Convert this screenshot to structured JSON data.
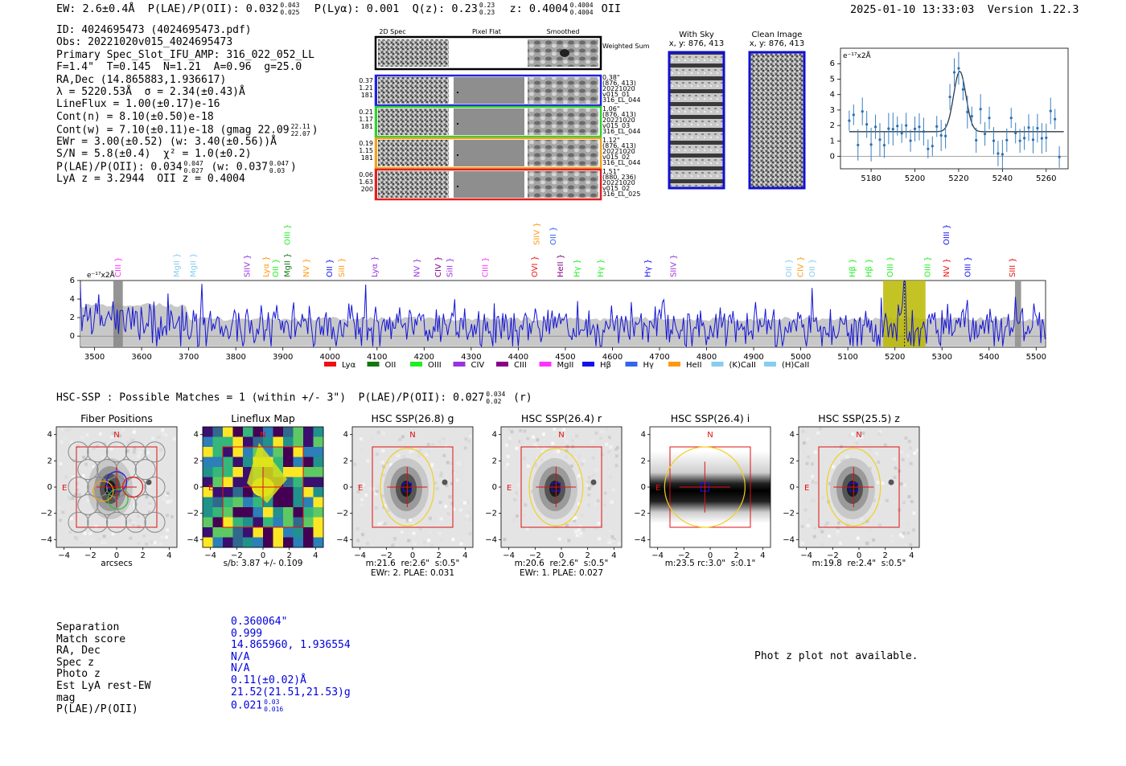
{
  "header": {
    "left": "EW: 2.6±0.4Å  P(LAE)/P(OII): 0.032",
    "left_sup": "0.043",
    "left_sub": "0.025",
    "plya": "P(Lyα): 0.001",
    "qz": "Q(z): 0.23",
    "qz_sup": "0.23",
    "qz_sub": "0.23",
    "z": "z: 0.4004",
    "z_sup": "0.4004",
    "z_sub": "0.4004",
    "z_line": "OII",
    "datetime": "2025-01-10 13:33:03",
    "version": "Version 1.22.3"
  },
  "info": {
    "id": "ID: 4024695473 (4024695473.pdf)",
    "obs": "Obs: 20221020v015_4024695473",
    "primary": "Primary Spec_Slot_IFU_AMP: 316_022_052_LL",
    "params": "F=1.4\"  T=0.145  N=1.21  A=0.96  g=25.0",
    "radec": "RA,Dec (14.865883,1.936617)",
    "lambda": "λ = 5220.53Å  σ = 2.34(±0.43)Å",
    "lineflux": "LineFlux = 1.00(±0.17)e-16",
    "contn": "Cont(n) = 8.10(±0.50)e-18",
    "contw": "Cont(w) = 7.10(±0.11)e-18 (gmag 22.09",
    "contw_sup": "22.11",
    "contw_sub": "22.07",
    "ewr": "EWr = 3.00(±0.52) (w: 3.40(±0.56))Å",
    "sn": "S/N = 5.8(±0.4)  χ² = 1.0(±0.2)",
    "plae": "P(LAE)/P(OII): 0.034",
    "plae_sup": "0.047",
    "plae_sub": "0.027",
    "plae_w": "(w: 0.037",
    "plae_w_sup": "0.047",
    "plae_w_sub": "0.03",
    "lyaz": "LyA z = 3.2944  OII z = 0.4004"
  },
  "spec2d": {
    "col_headers": [
      "2D Spec",
      "Pixel Flat",
      "Smoothed"
    ],
    "weighted_sum": "Weighted Sum",
    "rows": [
      {
        "left": [
          "0.37",
          "1.21",
          "181"
        ],
        "right": [
          "0.38\"",
          "(876, 413)",
          "20221020",
          "v015_01",
          "316_LL_044"
        ],
        "color": "#2020e0"
      },
      {
        "left": [
          "0.21",
          "1.17",
          "181"
        ],
        "right": [
          "1.06\"",
          "(876, 413)",
          "20221020",
          "v015_03",
          "316_LL_044"
        ],
        "color": "#30d030"
      },
      {
        "left": [
          "0.19",
          "1.15",
          "181"
        ],
        "right": [
          "1.12\"",
          "(876, 413)",
          "20221020",
          "v015_02",
          "316_LL_044"
        ],
        "color": "#f0a020"
      },
      {
        "left": [
          "0.06",
          "1.63",
          "200"
        ],
        "right": [
          "1.51\"",
          "(880, 236)",
          "20221020",
          "v015_02",
          "316_LL_025"
        ],
        "color": "#e02020"
      }
    ]
  },
  "cutouts": {
    "with_sky": "With Sky",
    "with_sky_xy": "x, y: 876, 413",
    "clean": "Clean Image",
    "clean_xy": "x, y: 876, 413"
  },
  "zoom_chart": {
    "unit": "e⁻¹⁷x2Å",
    "type": "line",
    "xlim": [
      5166,
      5270
    ],
    "ylim": [
      -0.8,
      7.0
    ],
    "xticks": [
      "5180",
      "5200",
      "5220",
      "5240",
      "5260"
    ],
    "yticks": [
      "0",
      "1",
      "2",
      "3",
      "4",
      "5",
      "6"
    ]
  },
  "spectrum": {
    "unit": "e⁻¹⁷x2Å",
    "xticks": [
      "3500",
      "3600",
      "3700",
      "3800",
      "3900",
      "4000",
      "4100",
      "4200",
      "4300",
      "4400",
      "4500",
      "4600",
      "4700",
      "4800",
      "4900",
      "5000",
      "5100",
      "5200",
      "5300",
      "5400",
      "5500"
    ],
    "yticks": [
      "0",
      "2",
      "4",
      "6"
    ],
    "legend": [
      {
        "label": "Lyα",
        "color": "#ee1111"
      },
      {
        "label": "OII",
        "color": "#117711"
      },
      {
        "label": "OIII",
        "color": "#22ee22"
      },
      {
        "label": "CIV",
        "color": "#9933dd"
      },
      {
        "label": "CIII",
        "color": "#880088"
      },
      {
        "label": "MgII",
        "color": "#ff33ff"
      },
      {
        "label": "Hβ",
        "color": "#1111ee"
      },
      {
        "label": "Hγ",
        "color": "#3366ee"
      },
      {
        "label": "HeII",
        "color": "#ff9911"
      },
      {
        "label": "(K)CaII",
        "color": "#88ccee"
      },
      {
        "label": "(H)CaII",
        "color": "#88ccee"
      }
    ],
    "lines": [
      {
        "label": "CIII",
        "wl": 3555,
        "color": "#ff33ff",
        "row": 0
      },
      {
        "label": "MgII",
        "wl": 3680,
        "color": "#88ccee",
        "row": 0
      },
      {
        "label": "MgII",
        "wl": 3715,
        "color": "#88ccee",
        "row": 0
      },
      {
        "label": "SIIV",
        "wl": 3830,
        "color": "#9933dd",
        "row": 0
      },
      {
        "label": "Lyα",
        "wl": 3870,
        "color": "#ff9911",
        "row": 0
      },
      {
        "label": "OII",
        "wl": 3890,
        "color": "#22ee22",
        "row": 0
      },
      {
        "label": "MgII",
        "wl": 3915,
        "color": "#117711",
        "row": 0
      },
      {
        "label": "OIII",
        "wl": 3915,
        "color": "#22ee22",
        "row": 1
      },
      {
        "label": "NV",
        "wl": 3955,
        "color": "#ff9911",
        "row": 0
      },
      {
        "label": "OII",
        "wl": 4005,
        "color": "#1111ee",
        "row": 0
      },
      {
        "label": "SiII",
        "wl": 4030,
        "color": "#ff9911",
        "row": 0
      },
      {
        "label": "Lyα",
        "wl": 4100,
        "color": "#9933dd",
        "row": 0
      },
      {
        "label": "NV",
        "wl": 4190,
        "color": "#9933dd",
        "row": 0
      },
      {
        "label": "CIV",
        "wl": 4235,
        "color": "#880088",
        "row": 0
      },
      {
        "label": "SiII",
        "wl": 4260,
        "color": "#9933dd",
        "row": 0
      },
      {
        "label": "CIII",
        "wl": 4335,
        "color": "#ff33ff",
        "row": 0
      },
      {
        "label": "OVI",
        "wl": 4440,
        "color": "#ee1111",
        "row": 0
      },
      {
        "label": "SIIV",
        "wl": 4445,
        "color": "#ff9911",
        "row": 1
      },
      {
        "label": "OII",
        "wl": 4480,
        "color": "#3366ee",
        "row": 1
      },
      {
        "label": "HeII",
        "wl": 4495,
        "color": "#880088",
        "row": 0
      },
      {
        "label": "Hγ",
        "wl": 4530,
        "color": "#22ee22",
        "row": 0
      },
      {
        "label": "Hγ",
        "wl": 4580,
        "color": "#22ee22",
        "row": 0
      },
      {
        "label": "Hγ",
        "wl": 4680,
        "color": "#1111ee",
        "row": 0
      },
      {
        "label": "SIIV",
        "wl": 4735,
        "color": "#9933dd",
        "row": 0
      },
      {
        "label": "OII",
        "wl": 4980,
        "color": "#88ccee",
        "row": 0
      },
      {
        "label": "CIV",
        "wl": 5005,
        "color": "#ff9911",
        "row": 0
      },
      {
        "label": "OII",
        "wl": 5030,
        "color": "#88ccee",
        "row": 0
      },
      {
        "label": "Hβ",
        "wl": 5115,
        "color": "#22ee22",
        "row": 0
      },
      {
        "label": "Hβ",
        "wl": 5150,
        "color": "#22ee22",
        "row": 0
      },
      {
        "label": "OIII",
        "wl": 5195,
        "color": "#22ee22",
        "row": 0
      },
      {
        "label": "OIII",
        "wl": 5275,
        "color": "#22ee22",
        "row": 0
      },
      {
        "label": "NV",
        "wl": 5315,
        "color": "#ee1111",
        "row": 0
      },
      {
        "label": "OIII",
        "wl": 5360,
        "color": "#1111ee",
        "row": 0
      },
      {
        "label": "OIII",
        "wl": 5315,
        "color": "#1111ee",
        "row": 1
      },
      {
        "label": "SIII",
        "wl": 5455,
        "color": "#ee1111",
        "row": 0
      }
    ]
  },
  "hsc": {
    "heading": "HSC-SSP : Possible Matches = 1 (within +/- 3\")  P(LAE)/P(OII): 0.027",
    "heading_sup": "0.034",
    "heading_sub": "0.02",
    "heading_band": "(r)",
    "panels": [
      {
        "title": "Fiber Positions",
        "cap1": "arcsecs",
        "cap2": ""
      },
      {
        "title": "Lineflux Map",
        "cap1": "s/b: 3.87 +/- 0.109",
        "cap2": ""
      },
      {
        "title": "HSC SSP(26.8) g",
        "cap1": "m:21.6  re:2.6\"  s:0.5\"",
        "cap2": "EWr: 2. PLAE: 0.031"
      },
      {
        "title": "HSC SSP(26.4) r",
        "cap1": "m:20.6  re:2.6\"  s:0.5\"",
        "cap2": "EWr: 1. PLAE: 0.027"
      },
      {
        "title": "HSC SSP(26.4) i",
        "cap1": "m:23.5 rc:3.0\"  s:0.1\"",
        "cap2": ""
      },
      {
        "title": "HSC SSP(25.5) z",
        "cap1": "m:19.8  re:2.4\"  s:0.5\"",
        "cap2": ""
      }
    ],
    "ticks": [
      "−4",
      "−2",
      "0",
      "2",
      "4"
    ],
    "n_label": "N",
    "e_label": "E"
  },
  "match": {
    "labels": [
      "Separation",
      "Match score",
      "RA, Dec",
      "Spec z",
      "Photo z",
      "Est LyA rest-EW",
      "mag",
      "P(LAE)/P(OII)"
    ],
    "separation": "0.360064\"",
    "match_score": "0.999",
    "radec": "14.865960, 1.936554",
    "spec_z": "N/A",
    "photo_z": "N/A",
    "est_lya": "0.11(±0.02)Å",
    "mag": "21.52(21.51,21.53)g",
    "plae": "0.021",
    "plae_sup": "0.03",
    "plae_sub": "0.016"
  },
  "photz": "Phot z plot not available."
}
